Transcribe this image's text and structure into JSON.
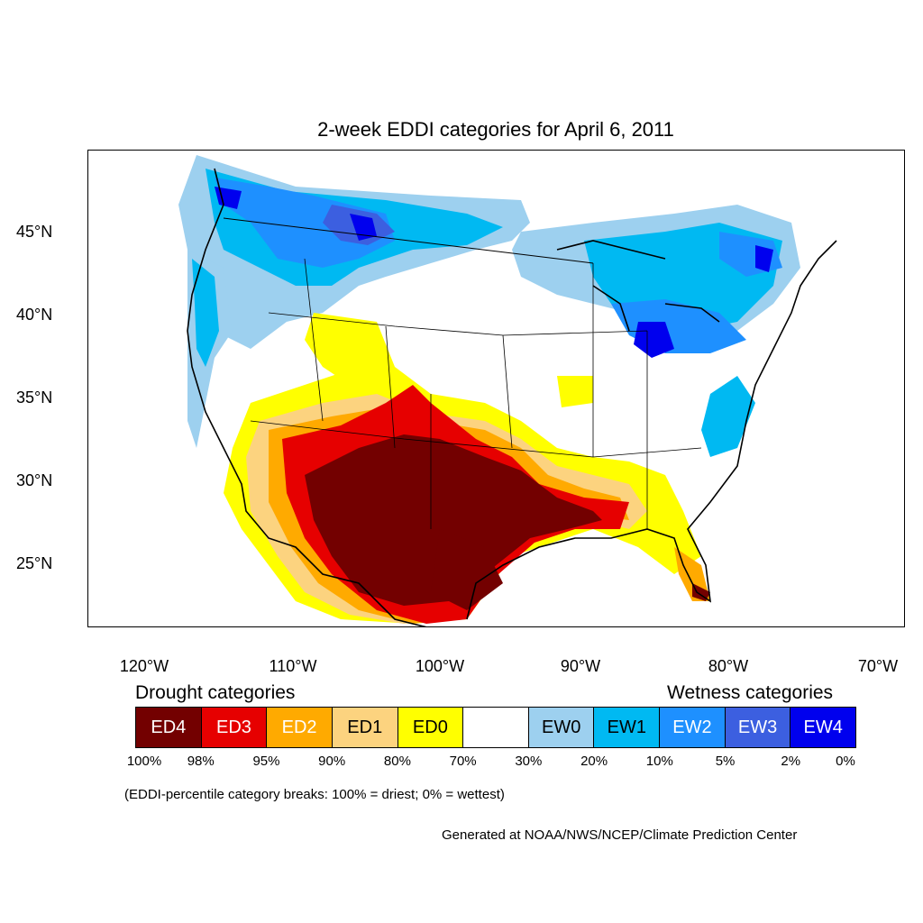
{
  "title": "2-week EDDI categories for April 6, 2011",
  "lat_labels": [
    "45°N",
    "40°N",
    "35°N",
    "30°N",
    "25°N"
  ],
  "lon_labels": [
    "120°W",
    "110°W",
    "100°W",
    "90°W",
    "80°W",
    "70°W"
  ],
  "legend": {
    "drought_heading": "Drought categories",
    "wetness_heading": "Wetness categories",
    "categories": [
      {
        "label": "ED4",
        "color": "#730000",
        "text_color": "#ffffff"
      },
      {
        "label": "ED3",
        "color": "#e60000",
        "text_color": "#ffffff"
      },
      {
        "label": "ED2",
        "color": "#ffaa00",
        "text_color": "#ffffff"
      },
      {
        "label": "ED1",
        "color": "#fcd37f",
        "text_color": "#000000"
      },
      {
        "label": "ED0",
        "color": "#ffff00",
        "text_color": "#000000"
      },
      {
        "label": "",
        "color": "#ffffff",
        "text_color": "#000000"
      },
      {
        "label": "EW0",
        "color": "#9dd0ef",
        "text_color": "#000000"
      },
      {
        "label": "EW1",
        "color": "#00b9f2",
        "text_color": "#000000"
      },
      {
        "label": "EW2",
        "color": "#1e90ff",
        "text_color": "#ffffff"
      },
      {
        "label": "EW3",
        "color": "#3c5fe0",
        "text_color": "#ffffff"
      },
      {
        "label": "EW4",
        "color": "#0000ee",
        "text_color": "#ffffff"
      }
    ],
    "percent_breaks": [
      "100%",
      "98%",
      "95%",
      "90%",
      "80%",
      "70%",
      "30%",
      "20%",
      "10%",
      "5%",
      "2%",
      "0%"
    ]
  },
  "note": "(EDDI-percentile category breaks: 100% = driest; 0% = wettest)",
  "credit": "Generated at NOAA/NWS/NCEP/Climate Prediction Center"
}
